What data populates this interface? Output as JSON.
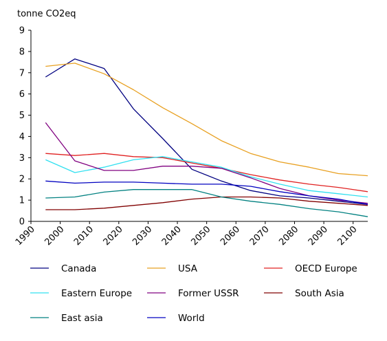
{
  "chart_data": {
    "type": "line",
    "title": "",
    "unit_label": "tonne CO2eq",
    "xlabel": "",
    "ylabel": "",
    "ylim": [
      0,
      9
    ],
    "xlim": [
      1990,
      2105
    ],
    "grid": false,
    "legend_placement": "bottom",
    "yticks": [
      "0",
      "1",
      "2",
      "3",
      "4",
      "5",
      "6",
      "7",
      "8",
      "9"
    ],
    "xticks": [
      "1990",
      "2000",
      "2010",
      "2020",
      "2030",
      "2040",
      "2050",
      "2060",
      "2070",
      "2080",
      "2090",
      "2100"
    ],
    "x": [
      1995,
      2005,
      2015,
      2025,
      2035,
      2045,
      2055,
      2065,
      2075,
      2085,
      2095,
      2105
    ],
    "series": [
      {
        "name": "Canada",
        "color": "#000080",
        "values": [
          6.8,
          7.65,
          7.2,
          5.3,
          3.9,
          2.45,
          1.9,
          1.45,
          1.2,
          1.1,
          0.95,
          0.8
        ]
      },
      {
        "name": "USA",
        "color": "#e8a020",
        "values": [
          7.3,
          7.45,
          6.95,
          6.2,
          5.35,
          4.6,
          3.8,
          3.2,
          2.8,
          2.55,
          2.25,
          2.15
        ]
      },
      {
        "name": "OECD Europe",
        "color": "#e02020",
        "values": [
          3.2,
          3.1,
          3.2,
          3.05,
          3.0,
          2.75,
          2.5,
          2.2,
          1.95,
          1.75,
          1.6,
          1.4
        ]
      },
      {
        "name": "Eastern Europe",
        "color": "#30e0f0",
        "values": [
          2.9,
          2.3,
          2.55,
          2.9,
          3.05,
          2.8,
          2.55,
          2.1,
          1.75,
          1.45,
          1.3,
          1.15
        ]
      },
      {
        "name": "Former USSR",
        "color": "#800080",
        "values": [
          4.65,
          2.85,
          2.4,
          2.4,
          2.6,
          2.6,
          2.5,
          2.05,
          1.55,
          1.2,
          1.0,
          0.85
        ]
      },
      {
        "name": "South Asia",
        "color": "#800000",
        "values": [
          0.55,
          0.55,
          0.62,
          0.75,
          0.88,
          1.05,
          1.15,
          1.15,
          1.1,
          0.95,
          0.85,
          0.75
        ]
      },
      {
        "name": "East asia",
        "color": "#008080",
        "values": [
          1.1,
          1.15,
          1.38,
          1.5,
          1.5,
          1.5,
          1.15,
          0.95,
          0.8,
          0.6,
          0.45,
          0.22
        ]
      },
      {
        "name": "World",
        "color": "#0000c0",
        "values": [
          1.9,
          1.8,
          1.85,
          1.85,
          1.8,
          1.75,
          1.75,
          1.65,
          1.4,
          1.2,
          1.05,
          0.8
        ]
      }
    ]
  }
}
